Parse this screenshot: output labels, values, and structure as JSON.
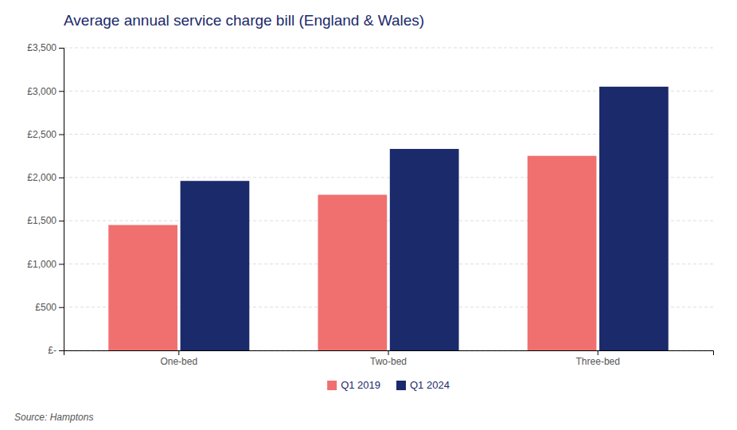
{
  "chart_data": {
    "type": "bar",
    "title": "Average annual service charge bill (England & Wales)",
    "categories": [
      "One-bed",
      "Two-bed",
      "Three-bed"
    ],
    "series": [
      {
        "name": "Q1 2019",
        "color": "#F07070",
        "values": [
          1450,
          1800,
          2250
        ]
      },
      {
        "name": "Q1 2024",
        "color": "#1B2A6B",
        "values": [
          1960,
          2330,
          3050
        ]
      }
    ],
    "ylim": [
      0,
      3500
    ],
    "yticks": [
      {
        "value": 0,
        "label": "£-"
      },
      {
        "value": 500,
        "label": "£500"
      },
      {
        "value": 1000,
        "label": "£1,000"
      },
      {
        "value": 1500,
        "label": "£1,500"
      },
      {
        "value": 2000,
        "label": "£2,000"
      },
      {
        "value": 2500,
        "label": "£2,500"
      },
      {
        "value": 3000,
        "label": "£3,000"
      },
      {
        "value": 3500,
        "label": "£3,500"
      }
    ],
    "grid": true,
    "legend": "bottom",
    "annotations": [
      "Source: Hamptons"
    ]
  }
}
